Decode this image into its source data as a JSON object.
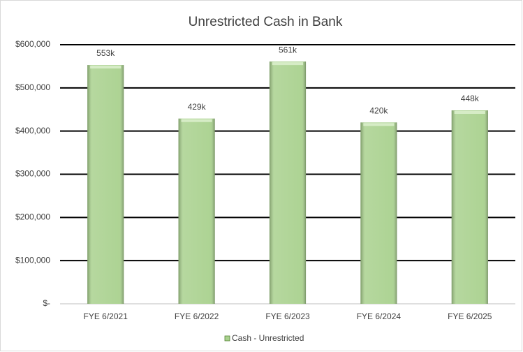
{
  "chart_data": {
    "type": "bar",
    "title": "Unrestricted Cash in Bank",
    "categories": [
      "FYE 6/2021",
      "FYE 6/2022",
      "FYE 6/2023",
      "FYE 6/2024",
      "FYE 6/2025"
    ],
    "series": [
      {
        "name": "Cash - Unrestricted",
        "color": "#a9d18e",
        "values": [
          553000,
          429000,
          561000,
          420000,
          448000
        ],
        "value_labels": [
          "553k",
          "429k",
          "561k",
          "420k",
          "448k"
        ]
      }
    ],
    "ylim": [
      0,
      600000
    ],
    "yticks": [
      {
        "value": 0,
        "label": "$-"
      },
      {
        "value": 100000,
        "label": "$100,000"
      },
      {
        "value": 200000,
        "label": "$200,000"
      },
      {
        "value": 300000,
        "label": "$300,000"
      },
      {
        "value": 400000,
        "label": "$400,000"
      },
      {
        "value": 500000,
        "label": "$500,000"
      },
      {
        "value": 600000,
        "label": "$600,000"
      }
    ],
    "grid": true,
    "legend": "bottom"
  }
}
